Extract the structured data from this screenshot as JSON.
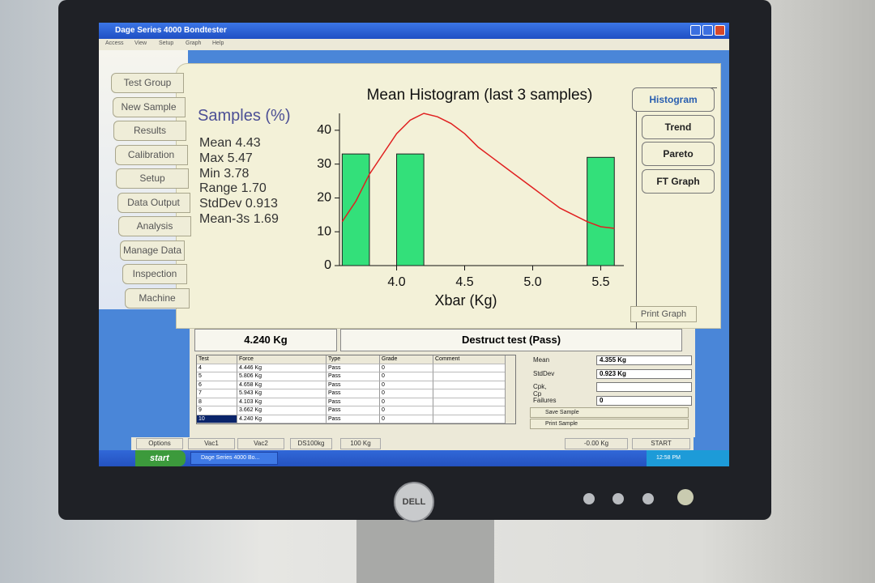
{
  "window": {
    "title": "Dage Series 4000 Bondtester",
    "menu": [
      "Access",
      "View",
      "Setup",
      "Graph",
      "Help"
    ]
  },
  "nav": [
    "Test Group",
    "New Sample",
    "Results",
    "Calibration",
    "Setup",
    "Data Output",
    "Analysis",
    "Manage Data",
    "Inspection",
    "Machine"
  ],
  "stats": {
    "heading": "Samples (%)",
    "lines": [
      "Mean 4.43",
      "Max 5.47",
      "Min 3.78",
      "Range 1.70",
      "StdDev 0.913",
      "Mean-3s 1.69"
    ]
  },
  "chart_data": {
    "type": "histogram",
    "title": "Mean Histogram (last 3 samples)",
    "xlabel": "Xbar (Kg)",
    "bins": [
      3.6,
      3.8,
      4.0,
      4.2,
      4.4,
      4.6,
      4.8,
      5.0,
      5.2,
      5.4,
      5.6
    ],
    "values": [
      33,
      0,
      33,
      0,
      0,
      0,
      0,
      0,
      0,
      32
    ],
    "color": "#33e07a",
    "curve": {
      "x": [
        3.6,
        3.7,
        3.8,
        3.9,
        4.0,
        4.1,
        4.2,
        4.3,
        4.4,
        4.5,
        4.6,
        4.7,
        4.8,
        4.9,
        5.0,
        5.1,
        5.2,
        5.3,
        5.4,
        5.5,
        5.6
      ],
      "values": [
        13,
        19,
        27,
        33,
        39,
        43,
        45,
        44,
        42,
        39,
        35,
        32,
        29,
        26,
        23,
        20,
        17,
        15,
        13,
        11.5,
        11
      ],
      "color": "#e02020"
    },
    "xlim": [
      3.58,
      5.67
    ],
    "ylim": [
      0,
      45
    ],
    "xticks": [
      {
        "value": 4,
        "label": "4.0"
      },
      4.5,
      {
        "value": 5,
        "label": "5.0"
      },
      5.5
    ],
    "yticks": [
      0,
      10,
      20,
      30,
      40
    ]
  },
  "graph_tabs": [
    "Histogram",
    "Trend",
    "Pareto",
    "FT Graph"
  ],
  "print_graph": "Print Graph",
  "result": {
    "force": "4.240 Kg",
    "status": "Destruct test (Pass)"
  },
  "table": {
    "columns": [
      "Test",
      "Force",
      "Type",
      "Grade",
      "Comment"
    ],
    "rows": [
      [
        "4",
        "4.446 Kg",
        "Pass",
        "0"
      ],
      [
        "5",
        "5.806 Kg",
        "Pass",
        "0"
      ],
      [
        "6",
        "4.658 Kg",
        "Pass",
        "0"
      ],
      [
        "7",
        "5.943 Kg",
        "Pass",
        "0"
      ],
      [
        "8",
        "4.103 Kg",
        "Pass",
        "0"
      ],
      [
        "9",
        "3.662 Kg",
        "Pass",
        "0"
      ],
      [
        "10",
        "4.240 Kg",
        "Pass",
        "0"
      ]
    ]
  },
  "summary": {
    "rows": [
      [
        "Mean",
        "4.355 Kg"
      ],
      [
        "StdDev",
        "0.923 Kg"
      ],
      [
        "Cpk, Cp"
      ],
      [
        "Failures",
        "0"
      ]
    ],
    "buttons": [
      "Save Sample",
      "Print Sample"
    ]
  },
  "status_bar": [
    "Options",
    "Vac1",
    "Vac2",
    "DS100kg",
    "100 Kg",
    "-0.00 Kg",
    "START"
  ],
  "taskbar": {
    "start": "start",
    "window": "Dage Series 4000 Bo...",
    "clock": "12:58 PM"
  },
  "monitor": {
    "brand": "DELL"
  }
}
